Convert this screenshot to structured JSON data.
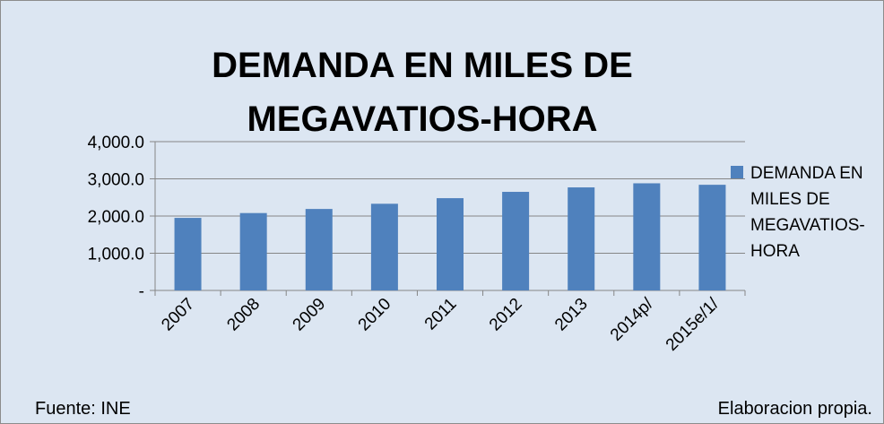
{
  "chart_data": {
    "type": "bar",
    "title": "DEMANDA EN MILES DE MEGAVATIOS-HORA",
    "categories": [
      "2007",
      "2008",
      "2009",
      "2010",
      "2011",
      "2012",
      "2013",
      "2014p/",
      "2015e/1/"
    ],
    "series": [
      {
        "name": "DEMANDA EN MILES DE MEGAVATIOS-HORA",
        "color": "#4f81bd",
        "values": [
          1950,
          2080,
          2190,
          2330,
          2480,
          2650,
          2770,
          2880,
          2840
        ]
      }
    ],
    "ylim": [
      0,
      4000
    ],
    "yticks": [
      {
        "value": 0,
        "label": "-"
      },
      {
        "value": 1000,
        "label": "1,000.0"
      },
      {
        "value": 2000,
        "label": "2,000.0"
      },
      {
        "value": 3000,
        "label": "3,000.0"
      },
      {
        "value": 4000,
        "label": "4,000.0"
      }
    ],
    "grid": true,
    "legend": "right",
    "source": "Fuente: INE",
    "credit": "Elaboracion propia."
  }
}
